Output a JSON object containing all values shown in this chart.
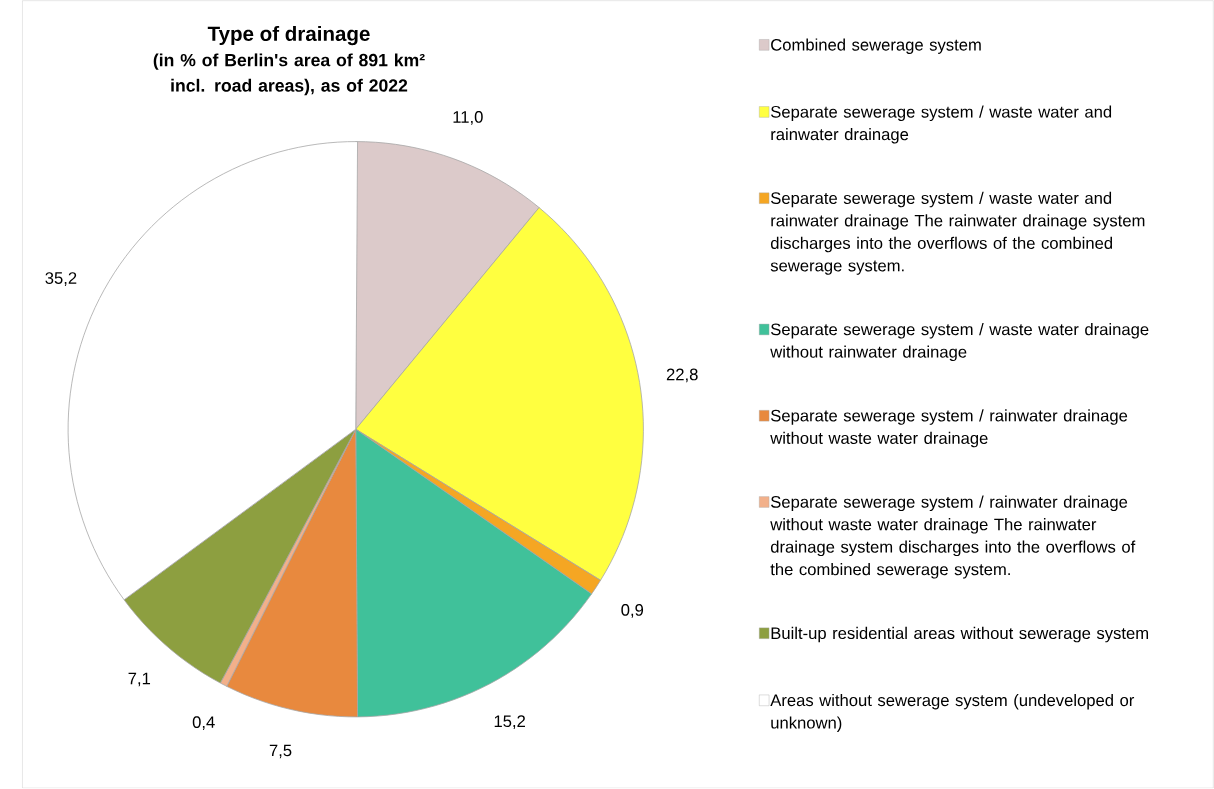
{
  "chart_data": {
    "type": "pie",
    "title": "Type of drainage",
    "subtitle": "(in % of Berlin's area of 891 km² incl. road areas), as of 2022",
    "categories": [
      "Combined sewerage system",
      "Separate sewerage system / waste water and rainwater drainage",
      "Separate sewerage system / waste water and rainwater drainage The rainwater drainage system discharges into the overflows of the combined sewerage system.",
      "Separate sewerage system / waste water drainage without rainwater drainage",
      "Separate sewerage system / rainwater drainage without waste water drainage",
      "Separate sewerage system / rainwater drainage without waste water drainage The rainwater drainage system discharges into the overflows of the combined sewerage system.",
      "Built-up residential areas without sewerage system",
      "Areas without sewerage system (undeveloped or unknown)"
    ],
    "values": [
      11.0,
      22.8,
      0.9,
      15.2,
      7.5,
      0.4,
      7.1,
      35.2
    ],
    "value_labels": [
      "11,0",
      "22,8",
      "0,9",
      "15,2",
      "7,5",
      "0,4",
      "7,1",
      "35,2"
    ],
    "colors": [
      "#dccaca",
      "#ffff40",
      "#f5a623",
      "#40c19a",
      "#e8893e",
      "#f2b08a",
      "#8d9f40",
      "#ffffff"
    ],
    "legend": "right"
  }
}
